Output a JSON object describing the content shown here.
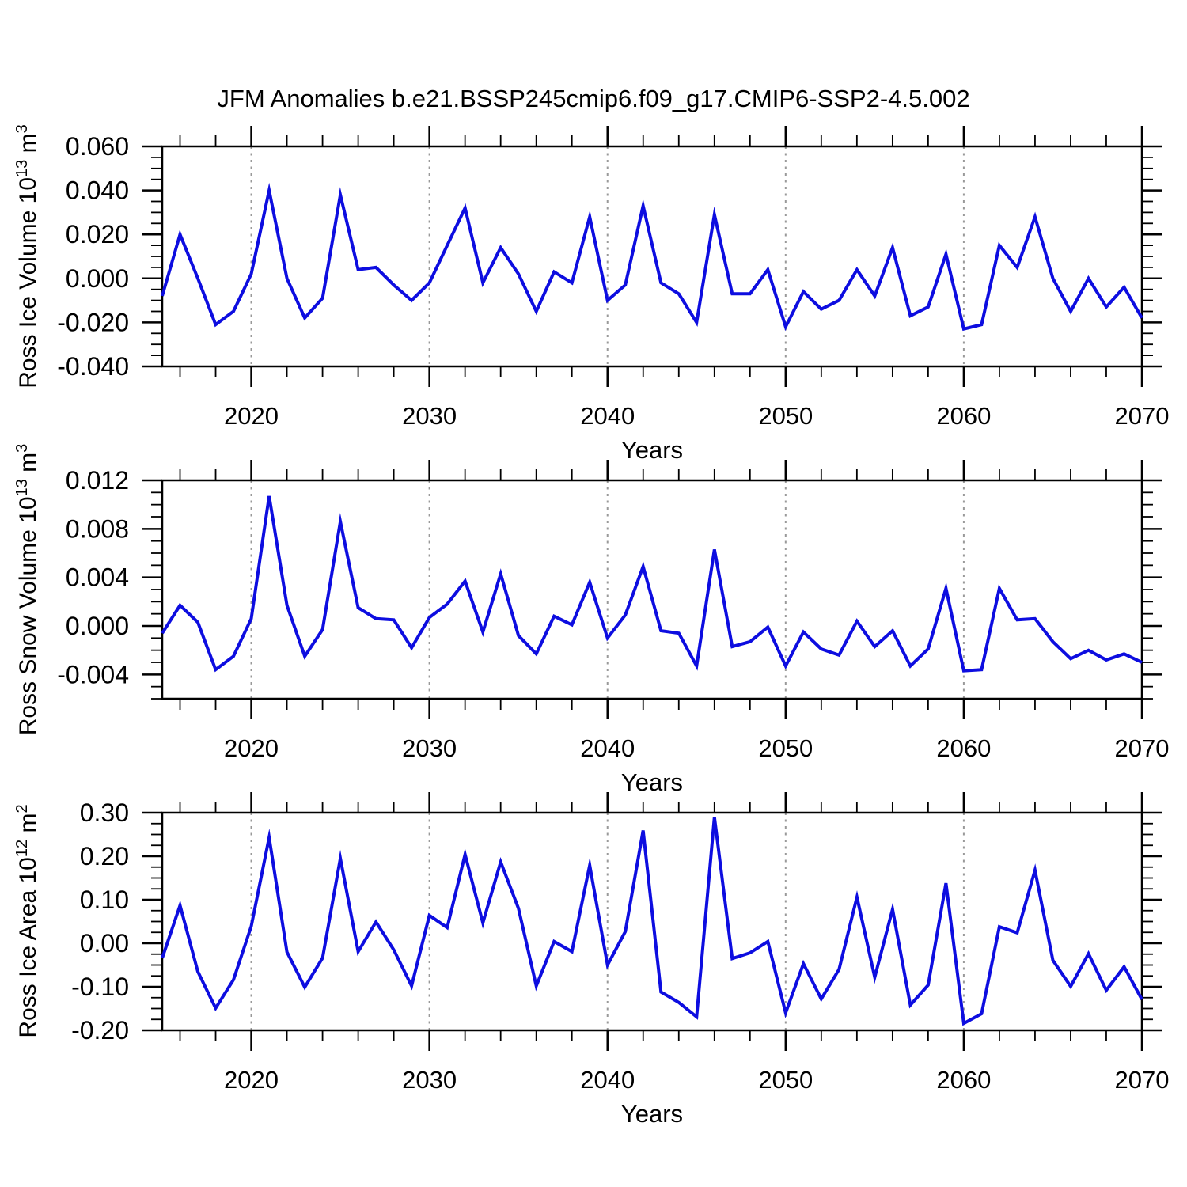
{
  "title": "JFM Anomalies b.e21.BSSP245cmip6.f09_g17.CMIP6-SSP2-4.5.002",
  "styles": {
    "line_color": "#0d0de0",
    "grid_color": "#999999",
    "axis_color": "#000000",
    "background": "#ffffff",
    "text_color": "#000000"
  },
  "x_axis": {
    "label": "Years",
    "tick_years": [
      2020,
      2030,
      2040,
      2050,
      2060,
      2070
    ],
    "tick_labels": [
      "2020",
      "2030",
      "2040",
      "2050",
      "2060",
      "2070"
    ],
    "minor_tick_step_years": 2,
    "gridline_years": [
      2020,
      2030,
      2040,
      2050,
      2060
    ],
    "range": [
      2015,
      2070
    ]
  },
  "x_years": [
    2015,
    2016,
    2017,
    2018,
    2019,
    2020,
    2021,
    2022,
    2023,
    2024,
    2025,
    2026,
    2027,
    2028,
    2029,
    2030,
    2031,
    2032,
    2033,
    2034,
    2035,
    2036,
    2037,
    2038,
    2039,
    2040,
    2041,
    2042,
    2043,
    2044,
    2045,
    2046,
    2047,
    2048,
    2049,
    2050,
    2051,
    2052,
    2053,
    2054,
    2055,
    2056,
    2057,
    2058,
    2059,
    2060,
    2061,
    2062,
    2063,
    2064,
    2065,
    2066,
    2067,
    2068,
    2069,
    2070
  ],
  "chart_data": [
    {
      "type": "line",
      "name": "Ross Ice Volume",
      "ylabel": "Ross Ice Volume 10^13 m^3",
      "units": "10^13 m^3",
      "ylabel_parts": {
        "base": "Ross Ice Volume 10",
        "exp": "13",
        "unit": " m",
        "unit_exp": "3"
      },
      "ylim": [
        -0.04,
        0.06
      ],
      "ytick_values": [
        0.06,
        0.04,
        0.02,
        0.0,
        -0.02,
        -0.04
      ],
      "ytick_labels": [
        "0.060",
        "0.040",
        "0.020",
        "0.000",
        "-0.020",
        "-0.040"
      ],
      "yminor_step": 0.005,
      "grid": "vertical-dashed",
      "legend": "none",
      "values": [
        -0.008,
        0.02,
        0.0,
        -0.021,
        -0.015,
        0.002,
        0.04,
        0.0,
        -0.018,
        -0.009,
        0.038,
        0.004,
        0.005,
        -0.003,
        -0.01,
        -0.002,
        0.015,
        0.032,
        -0.002,
        0.014,
        0.002,
        -0.015,
        0.003,
        -0.002,
        0.028,
        -0.01,
        -0.003,
        0.033,
        -0.002,
        -0.007,
        -0.02,
        0.029,
        -0.007,
        -0.007,
        0.004,
        -0.022,
        -0.006,
        -0.014,
        -0.01,
        0.004,
        -0.008,
        0.014,
        -0.017,
        -0.013,
        0.011,
        -0.023,
        -0.021,
        0.015,
        0.005,
        0.028,
        0.0,
        -0.015,
        0.0,
        -0.013,
        -0.004,
        -0.018
      ]
    },
    {
      "type": "line",
      "name": "Ross Snow Volume",
      "ylabel": "Ross Snow Volume 10^13 m^3",
      "units": "10^13 m^3",
      "ylabel_parts": {
        "base": "Ross Snow Volume 10",
        "exp": "13",
        "unit": " m",
        "unit_exp": "3"
      },
      "ylim": [
        -0.006,
        0.012
      ],
      "ytick_values": [
        0.012,
        0.008,
        0.004,
        0.0,
        -0.004
      ],
      "ytick_labels": [
        "0.012",
        "0.008",
        "0.004",
        "0.000",
        "-0.004"
      ],
      "yminor_step": 0.001,
      "grid": "vertical-dashed",
      "legend": "none",
      "values": [
        -0.0006,
        0.0017,
        0.0003,
        -0.0036,
        -0.0025,
        0.0006,
        0.0107,
        0.0017,
        -0.0025,
        -0.0003,
        0.0086,
        0.0015,
        0.0006,
        0.0005,
        -0.0018,
        0.0007,
        0.0018,
        0.0037,
        -0.0005,
        0.0043,
        -0.0008,
        -0.0023,
        0.0008,
        0.0001,
        0.0036,
        -0.001,
        0.0009,
        0.0049,
        -0.0004,
        -0.0006,
        -0.0033,
        0.0063,
        -0.0017,
        -0.0013,
        -0.0001,
        -0.0033,
        -0.0005,
        -0.0019,
        -0.0024,
        0.0004,
        -0.0017,
        -0.0004,
        -0.0033,
        -0.0019,
        0.0031,
        -0.0037,
        -0.0036,
        0.0031,
        0.0005,
        0.0006,
        -0.0013,
        -0.0027,
        -0.002,
        -0.0028,
        -0.0023,
        -0.003
      ]
    },
    {
      "type": "line",
      "name": "Ross Ice Area",
      "ylabel": "Ross Ice Area 10^12 m^2",
      "units": "10^12 m^2",
      "ylabel_parts": {
        "base": "Ross Ice Area 10",
        "exp": "12",
        "unit": " m",
        "unit_exp": "2"
      },
      "ylim": [
        -0.2,
        0.3
      ],
      "ytick_values": [
        0.3,
        0.2,
        0.1,
        0.0,
        -0.1,
        -0.2
      ],
      "ytick_labels": [
        "0.30",
        "0.20",
        "0.10",
        "0.00",
        "-0.10",
        "-0.20"
      ],
      "yminor_step": 0.025,
      "grid": "vertical-dashed",
      "legend": "none",
      "values": [
        -0.034,
        0.087,
        -0.065,
        -0.149,
        -0.084,
        0.039,
        0.243,
        -0.02,
        -0.101,
        -0.034,
        0.195,
        -0.019,
        0.049,
        -0.015,
        -0.098,
        0.064,
        0.036,
        0.204,
        0.047,
        0.187,
        0.08,
        -0.098,
        0.004,
        -0.019,
        0.179,
        -0.05,
        0.027,
        0.259,
        -0.112,
        -0.136,
        -0.169,
        0.29,
        -0.035,
        -0.022,
        0.004,
        -0.16,
        -0.047,
        -0.128,
        -0.06,
        0.106,
        -0.078,
        0.078,
        -0.142,
        -0.096,
        0.138,
        -0.184,
        -0.162,
        0.038,
        0.024,
        0.168,
        -0.039,
        -0.099,
        -0.024,
        -0.108,
        -0.054,
        -0.129
      ]
    }
  ]
}
